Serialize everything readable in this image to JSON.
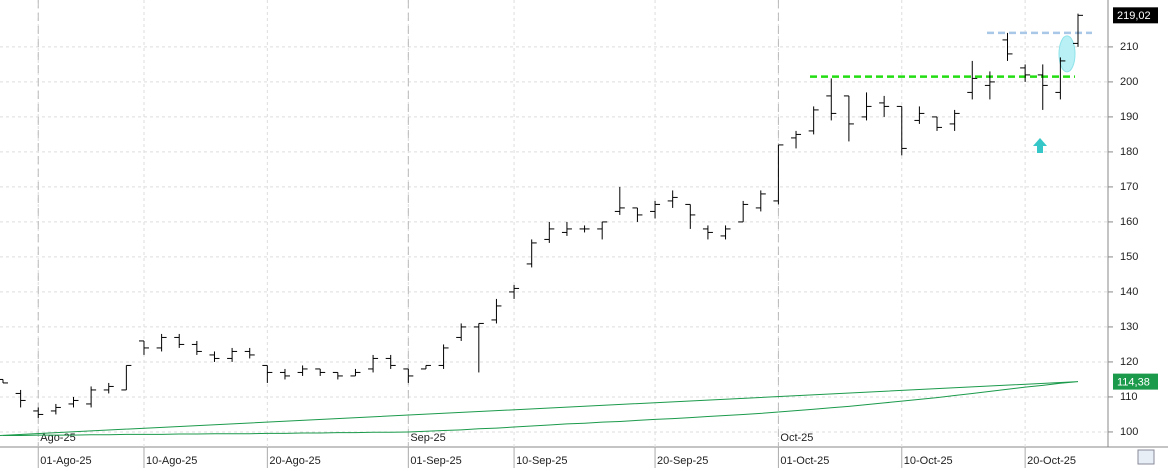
{
  "chart_data": {
    "type": "ohlc",
    "categories": [
      null,
      null,
      "01-Ago-25",
      null,
      null,
      null,
      null,
      null,
      "10-Ago-25",
      null,
      null,
      null,
      null,
      null,
      null,
      "20-Ago-25",
      null,
      null,
      null,
      null,
      null,
      null,
      null,
      "01-Sep-25",
      null,
      null,
      null,
      null,
      null,
      "10-Sep-25",
      null,
      null,
      null,
      null,
      null,
      null,
      null,
      "20-Sep-25",
      null,
      null,
      null,
      null,
      null,
      null,
      "01-Oct-25",
      null,
      null,
      null,
      null,
      null,
      null,
      "10-Oct-25",
      null,
      null,
      null,
      null,
      null,
      null,
      "20-Oct-25",
      null,
      null,
      null
    ],
    "period_labels": [
      null,
      null,
      "Ago-25",
      null,
      null,
      null,
      null,
      null,
      null,
      null,
      null,
      null,
      null,
      null,
      null,
      null,
      null,
      null,
      null,
      null,
      null,
      null,
      null,
      "Sep-25",
      null,
      null,
      null,
      null,
      null,
      null,
      null,
      null,
      null,
      null,
      null,
      null,
      null,
      null,
      null,
      null,
      null,
      null,
      null,
      null,
      "Oct-25",
      null,
      null,
      null,
      null,
      null,
      null,
      null,
      null,
      null,
      null,
      null,
      null,
      null,
      null,
      null,
      null,
      null,
      null,
      null
    ],
    "open": [
      115,
      111,
      106,
      106,
      108,
      108,
      112,
      112,
      126,
      124,
      127,
      125,
      122,
      121,
      123,
      119,
      117,
      117,
      118,
      117,
      116,
      118,
      121,
      118,
      118,
      119,
      127,
      130,
      132,
      140,
      148,
      155,
      157,
      158,
      158,
      163,
      164,
      163,
      166,
      165,
      158,
      156,
      160,
      164,
      166,
      184,
      186,
      196,
      196,
      190,
      194,
      193,
      189,
      190,
      188,
      197,
      199,
      212,
      204,
      202,
      197,
      211
    ],
    "high": [
      115,
      112,
      107,
      108,
      110,
      113,
      114,
      119,
      126,
      128,
      128,
      126,
      123,
      124,
      124,
      119,
      118,
      119,
      118,
      117,
      118,
      122,
      122,
      118,
      119,
      125,
      131,
      131,
      138,
      142,
      155,
      160,
      160,
      159,
      160,
      170,
      164,
      166,
      169,
      165,
      159,
      159,
      166,
      169,
      182,
      186,
      193,
      201,
      196,
      197,
      196,
      193,
      193,
      190,
      192,
      206,
      203,
      214,
      205,
      205,
      207,
      219.5
    ],
    "low": [
      114,
      107,
      104,
      105,
      107,
      107,
      111,
      112,
      122,
      123,
      124,
      122,
      120,
      120,
      121,
      114,
      115,
      116,
      116,
      115,
      116,
      117,
      118,
      114,
      118,
      118,
      126,
      117,
      131,
      138,
      147,
      154,
      156,
      157,
      155,
      162,
      160,
      161,
      164,
      158,
      155,
      155,
      160,
      163,
      165,
      181,
      185,
      189,
      183,
      189,
      190,
      179,
      188,
      186,
      186,
      195,
      195,
      206,
      200,
      192,
      195,
      210
    ],
    "close": [
      114,
      109,
      105,
      107,
      109,
      112,
      113,
      119,
      124,
      127,
      125,
      123,
      121,
      123,
      122,
      117,
      116,
      118,
      117,
      116,
      117,
      121,
      119,
      116,
      119,
      124,
      130,
      131,
      136,
      141,
      154,
      158,
      158,
      158,
      160,
      164,
      162,
      165,
      167,
      162,
      157,
      158,
      165,
      168,
      182,
      185,
      192,
      191,
      188,
      193,
      193,
      181,
      191,
      187,
      191,
      201,
      200,
      208,
      202,
      199,
      206,
      219.02
    ],
    "bar_color": "#000000",
    "moving_average": {
      "color": "#1b9a4b",
      "values": [
        99.0,
        99.0,
        99.1,
        99.1,
        99.1,
        99.2,
        99.2,
        99.3,
        99.3,
        99.3,
        99.4,
        99.4,
        99.5,
        99.5,
        99.5,
        99.6,
        99.6,
        99.7,
        99.7,
        99.8,
        99.8,
        99.9,
        99.9,
        100.0,
        100.2,
        100.4,
        100.6,
        100.9,
        101.1,
        101.4,
        101.7,
        102.0,
        102.3,
        102.5,
        102.8,
        103.0,
        103.3,
        103.6,
        103.8,
        104.1,
        104.4,
        104.7,
        105.0,
        105.3,
        105.7,
        106.1,
        106.5,
        106.9,
        107.3,
        107.8,
        108.3,
        108.8,
        109.3,
        109.8,
        110.4,
        111.0,
        111.6,
        112.2,
        112.8,
        113.3,
        113.9,
        114.38
      ]
    },
    "last_price": {
      "value": 219.02,
      "label": "219,02",
      "color": "#000000"
    },
    "ma_last": {
      "value": 114.38,
      "label": "114,38",
      "color": "#1b9a4b"
    },
    "hlines": [
      {
        "value": 214,
        "color": "#a9c8e8"
      },
      {
        "value": 201.5,
        "color": "#22dd11"
      }
    ],
    "ylim": [
      95.7,
      223.4
    ],
    "yticks": [
      100,
      110,
      120,
      130,
      140,
      150,
      160,
      170,
      180,
      190,
      200,
      210
    ],
    "grid": true
  }
}
